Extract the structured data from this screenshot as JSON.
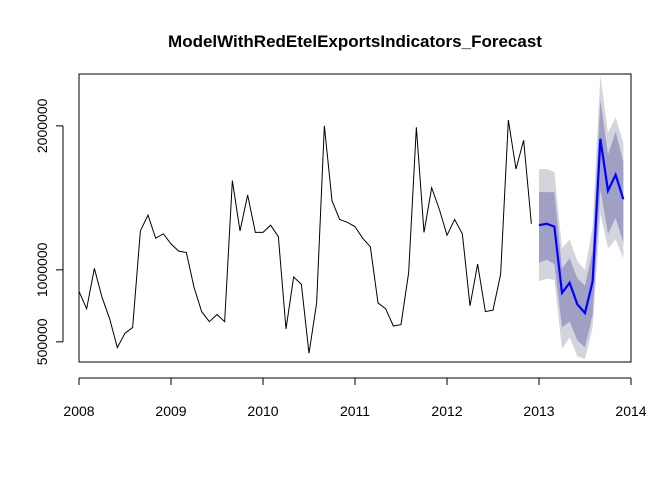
{
  "chart_data": {
    "type": "line",
    "title": "ModelWithRedEtelExportsIndicators_Forecast",
    "xlabel": "",
    "ylabel": "",
    "xlim": [
      2008,
      2014
    ],
    "ylim": [
      360000,
      2360000
    ],
    "x_ticks": [
      2008,
      2009,
      2010,
      2011,
      2012,
      2013,
      2014
    ],
    "x_tick_labels": [
      "2008",
      "2009",
      "2010",
      "2011",
      "2012",
      "2013",
      "2014"
    ],
    "y_ticks": [
      500000,
      1000000,
      2000000
    ],
    "y_tick_labels": [
      "500000",
      "1000000",
      "2000000"
    ],
    "grid": false,
    "legend": "none",
    "colors": {
      "history": "#000000",
      "forecast": "#0000ff",
      "band80": "#9fa0c4",
      "band95": "#d4d4dc"
    },
    "series": [
      {
        "x": [
          2008.0,
          2008.083,
          2008.167,
          2008.25,
          2008.333,
          2008.417,
          2008.5,
          2008.583,
          2008.667,
          2008.75,
          2008.833,
          2008.917,
          2009.0,
          2009.083,
          2009.167,
          2009.25,
          2009.333,
          2009.417,
          2009.5,
          2009.583,
          2009.667,
          2009.75,
          2009.833,
          2009.917,
          2010.0,
          2010.083,
          2010.167,
          2010.25,
          2010.333,
          2010.417,
          2010.5,
          2010.583,
          2010.667,
          2010.75,
          2010.833,
          2010.917,
          2011.0,
          2011.083,
          2011.167,
          2011.25,
          2011.333,
          2011.417,
          2011.5,
          2011.583,
          2011.667,
          2011.75,
          2011.833,
          2011.917,
          2012.0,
          2012.083,
          2012.167,
          2012.25,
          2012.333,
          2012.417,
          2012.5,
          2012.583,
          2012.667,
          2012.75,
          2012.833,
          2012.917
        ],
        "values": [
          850000,
          730000,
          1010000,
          810000,
          660000,
          460000,
          560000,
          600000,
          1270000,
          1380000,
          1220000,
          1250000,
          1180000,
          1130000,
          1120000,
          880000,
          710000,
          640000,
          690000,
          640000,
          1620000,
          1270000,
          1520000,
          1260000,
          1260000,
          1310000,
          1230000,
          590000,
          950000,
          900000,
          420000,
          770000,
          2000000,
          1480000,
          1350000,
          1330000,
          1300000,
          1220000,
          1160000,
          770000,
          730000,
          610000,
          620000,
          980000,
          1990000,
          1260000,
          1570000,
          1420000,
          1240000,
          1350000,
          1250000,
          750000,
          1040000,
          710000,
          720000,
          970000,
          2040000,
          1700000,
          1900000,
          1320000
        ]
      },
      {
        "x": [
          2013.0,
          2013.083,
          2013.167,
          2013.25,
          2013.333,
          2013.417,
          2013.5,
          2013.583,
          2013.667,
          2013.75,
          2013.833,
          2013.917
        ],
        "values": [
          1310000,
          1320000,
          1300000,
          840000,
          910000,
          760000,
          700000,
          920000,
          1910000,
          1550000,
          1660000,
          1490000
        ],
        "lo80": [
          1050000,
          1070000,
          1040000,
          600000,
          640000,
          510000,
          460000,
          690000,
          1560000,
          1250000,
          1360000,
          1190000
        ],
        "hi80": [
          1540000,
          1540000,
          1540000,
          1010000,
          1080000,
          940000,
          890000,
          1130000,
          2180000,
          1800000,
          1960000,
          1750000
        ],
        "lo95": [
          920000,
          940000,
          930000,
          450000,
          530000,
          400000,
          380000,
          600000,
          1390000,
          1150000,
          1210000,
          1080000
        ],
        "hi95": [
          1700000,
          1700000,
          1680000,
          1150000,
          1210000,
          1060000,
          1000000,
          1300000,
          2350000,
          1950000,
          2060000,
          1880000
        ]
      }
    ]
  }
}
